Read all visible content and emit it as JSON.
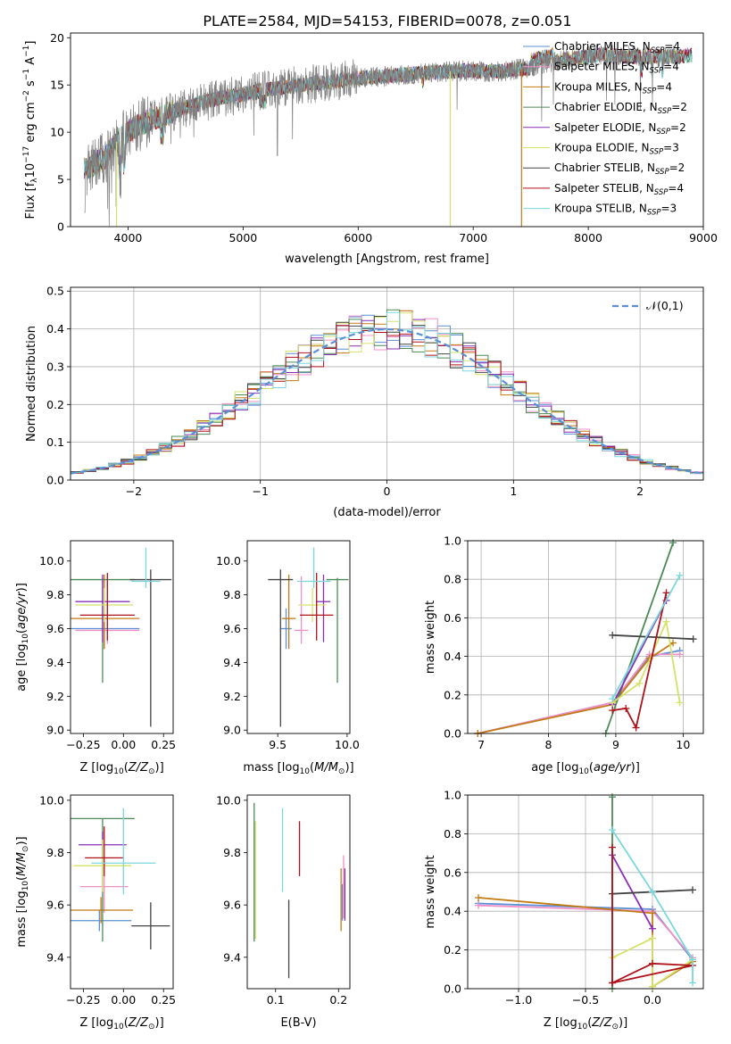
{
  "figure": {
    "title": "PLATE=2584, MJD=54153, FIBERID=0078, z=0.051"
  },
  "series_legend": [
    {
      "label": "Chabrier MILES, N",
      "sub": "SSP",
      "suffix": "=4",
      "color": "#5b8fd6"
    },
    {
      "label": "Salpeter MILES, N",
      "sub": "SSP",
      "suffix": "=4",
      "color": "#f090c8"
    },
    {
      "label": "Kroupa MILES, N",
      "sub": "SSP",
      "suffix": "=4",
      "color": "#c47a14"
    },
    {
      "label": "Chabrier ELODIE, N",
      "sub": "SSP",
      "suffix": "=2",
      "color": "#4c8a55"
    },
    {
      "label": "Salpeter ELODIE, N",
      "sub": "SSP",
      "suffix": "=2",
      "color": "#8a2fb5"
    },
    {
      "label": "Kroupa ELODIE, N",
      "sub": "SSP",
      "suffix": "=3",
      "color": "#d4e26a"
    },
    {
      "label": "Chabrier STELIB, N",
      "sub": "SSP",
      "suffix": "=2",
      "color": "#444444"
    },
    {
      "label": "Salpeter STELIB, N",
      "sub": "SSP",
      "suffix": "=4",
      "color": "#b0121b"
    },
    {
      "label": "Kroupa STELIB, N",
      "sub": "SSP",
      "suffix": "=3",
      "color": "#7ad7db"
    }
  ],
  "chart_data": [
    {
      "id": "spectrum",
      "type": "line",
      "xlabel": "wavelength [Angstrom, rest frame]",
      "ylabel": "Flux [f_λ10^-17 erg cm^-2 s^-1 A^-1]",
      "xlim": [
        3500,
        9000
      ],
      "ylim": [
        0,
        20.5
      ],
      "xticks": [
        4000,
        5000,
        6000,
        7000,
        8000,
        9000
      ],
      "yticks": [
        0,
        5,
        10,
        15,
        20
      ],
      "continuum": {
        "x": [
          3620,
          3700,
          3800,
          3900,
          4000,
          4200,
          4400,
          4600,
          4800,
          5000,
          5200,
          5500,
          5800,
          6000,
          6300,
          6600,
          6900,
          7200,
          7500,
          7800,
          8100,
          8400,
          8700,
          8900
        ],
        "y": [
          6.0,
          6.6,
          7.3,
          9.0,
          10.1,
          11.4,
          12.2,
          13.0,
          13.6,
          14.0,
          14.5,
          15.0,
          15.4,
          15.7,
          16.0,
          16.3,
          16.5,
          16.4,
          16.8,
          17.7,
          18.2,
          18.0,
          18.0,
          18.1
        ]
      },
      "dropouts": [
        {
          "series": "Kroupa ELODIE, N_SSP=3",
          "x": [
            3900,
            6800
          ],
          "color": "#d4e26a"
        },
        {
          "series": "Kroupa MILES, N_SSP=4",
          "x": [
            7420
          ],
          "color": "#c47a14"
        }
      ],
      "legend_location": "upper right"
    },
    {
      "id": "residuals",
      "type": "histogram",
      "xlabel": "(data-model)/error",
      "ylabel": "Normed distribution",
      "xlim": [
        -2.5,
        2.5
      ],
      "ylim": [
        0,
        0.51
      ],
      "xticks": [
        -2,
        -1,
        0,
        1,
        2
      ],
      "yticks": [
        0,
        0.1,
        0.2,
        0.3,
        0.4,
        0.5
      ],
      "bin_width": 0.1,
      "bin_start": -2.5,
      "reference": {
        "label": "𝒩(0,1)",
        "type": "normal",
        "mean": 0,
        "sigma": 1,
        "color": "#5b8fd6"
      },
      "legend_location": "upper right",
      "grid": true
    },
    {
      "id": "age-vs-Z",
      "type": "errorbar",
      "xlabel": "Z [log10(Z/Z⊙)]",
      "ylabel": "age  [log10(age/yr)]",
      "xlim": [
        -0.33,
        0.31
      ],
      "ylim": [
        8.98,
        10.12
      ],
      "xticks": [
        -0.25,
        0.0,
        0.25
      ],
      "yticks": [
        9.0,
        9.2,
        9.4,
        9.6,
        9.8,
        10.0
      ],
      "points": [
        {
          "x": -0.12,
          "xerr": 0.22,
          "y": 9.6,
          "yerr": [
            0.12,
            0.12
          ],
          "color": "#5b8fd6"
        },
        {
          "x": -0.1,
          "xerr": 0.2,
          "y": 9.59,
          "yerr": [
            0.08,
            0.32
          ],
          "color": "#f090c8"
        },
        {
          "x": -0.12,
          "xerr": 0.22,
          "y": 9.66,
          "yerr": [
            0.18,
            0.26
          ],
          "color": "#c47a14"
        },
        {
          "x": -0.13,
          "xerr": 0.2,
          "y": 9.89,
          "yerr": [
            0.61,
            0.01
          ],
          "color": "#4c8a55"
        },
        {
          "x": -0.13,
          "xerr": 0.17,
          "y": 9.76,
          "yerr": [
            0.24,
            0.16
          ],
          "color": "#8a2fb5"
        },
        {
          "x": -0.12,
          "xerr": 0.18,
          "y": 9.74,
          "yerr": [
            0.1,
            0.1
          ],
          "color": "#d4e26a"
        },
        {
          "x": 0.17,
          "xerr": 0.13,
          "y": 9.89,
          "yerr": [
            0.87,
            0.06
          ],
          "color": "#444444"
        },
        {
          "x": -0.1,
          "xerr": 0.17,
          "y": 9.68,
          "yerr": [
            0.15,
            0.25
          ],
          "color": "#b0121b"
        },
        {
          "x": 0.14,
          "xerr": 0.09,
          "y": 9.88,
          "yerr": [
            0.04,
            0.2
          ],
          "color": "#7ad7db"
        }
      ]
    },
    {
      "id": "age-vs-mass",
      "type": "errorbar",
      "xlabel": "mass [log10(M/M⊙)]",
      "ylabel": "",
      "xlim": [
        9.28,
        10.02
      ],
      "ylim": [
        8.98,
        10.12
      ],
      "xticks": [
        9.5,
        10.0
      ],
      "yticks": [
        9.0,
        9.2,
        9.4,
        9.6,
        9.8,
        10.0
      ],
      "points": [
        {
          "x": 9.56,
          "xerr": 0.04,
          "y": 9.6,
          "yerr": [
            0.12,
            0.12
          ],
          "color": "#5b8fd6"
        },
        {
          "x": 9.67,
          "xerr": 0.05,
          "y": 9.59,
          "yerr": [
            0.08,
            0.32
          ],
          "color": "#f090c8"
        },
        {
          "x": 9.58,
          "xerr": 0.05,
          "y": 9.66,
          "yerr": [
            0.18,
            0.26
          ],
          "color": "#c47a14"
        },
        {
          "x": 9.93,
          "xerr": 0.08,
          "y": 9.89,
          "yerr": [
            0.61,
            0.01
          ],
          "color": "#4c8a55"
        },
        {
          "x": 9.83,
          "xerr": 0.05,
          "y": 9.76,
          "yerr": [
            0.24,
            0.16
          ],
          "color": "#8a2fb5"
        },
        {
          "x": 9.75,
          "xerr": 0.1,
          "y": 9.74,
          "yerr": [
            0.1,
            0.1
          ],
          "color": "#d4e26a"
        },
        {
          "x": 9.52,
          "xerr": 0.09,
          "y": 9.89,
          "yerr": [
            0.87,
            0.06
          ],
          "color": "#444444"
        },
        {
          "x": 9.78,
          "xerr": 0.12,
          "y": 9.68,
          "yerr": [
            0.15,
            0.25
          ],
          "color": "#b0121b"
        },
        {
          "x": 9.76,
          "xerr": 0.12,
          "y": 9.88,
          "yerr": [
            0.04,
            0.2
          ],
          "color": "#7ad7db"
        }
      ]
    },
    {
      "id": "weight-vs-age",
      "type": "line",
      "xlabel": "age  [log10(age/yr)]",
      "ylabel": "mass weight",
      "xlim": [
        6.8,
        10.3
      ],
      "ylim": [
        0,
        1.0
      ],
      "xticks": [
        7,
        8,
        9,
        10
      ],
      "yticks": [
        0.0,
        0.2,
        0.4,
        0.6,
        0.8,
        1.0
      ],
      "grid": true,
      "series": [
        {
          "color": "#5b8fd6",
          "x": [
            6.95,
            8.95,
            9.5,
            9.95
          ],
          "y": [
            0.0,
            0.16,
            0.4,
            0.43
          ]
        },
        {
          "color": "#f090c8",
          "x": [
            6.95,
            8.95,
            9.5,
            9.95
          ],
          "y": [
            0.0,
            0.16,
            0.41,
            0.41
          ]
        },
        {
          "color": "#c47a14",
          "x": [
            6.95,
            8.95,
            9.5,
            9.85
          ],
          "y": [
            0.0,
            0.15,
            0.39,
            0.47
          ]
        },
        {
          "color": "#4c8a55",
          "x": [
            8.85,
            9.85
          ],
          "y": [
            0.0,
            0.99
          ]
        },
        {
          "color": "#8a2fb5",
          "x": [
            8.95,
            9.75
          ],
          "y": [
            0.15,
            0.69
          ]
        },
        {
          "color": "#d4e26a",
          "x": [
            8.95,
            9.35,
            9.75,
            9.95
          ],
          "y": [
            0.16,
            0.26,
            0.58,
            0.16
          ]
        },
        {
          "color": "#444444",
          "x": [
            8.95,
            10.15
          ],
          "y": [
            0.51,
            0.49
          ]
        },
        {
          "color": "#b0121b",
          "x": [
            8.95,
            9.15,
            9.3,
            9.75
          ],
          "y": [
            0.12,
            0.13,
            0.03,
            0.73
          ]
        },
        {
          "color": "#7ad7db",
          "x": [
            8.95,
            9.95
          ],
          "y": [
            0.18,
            0.82
          ]
        }
      ]
    },
    {
      "id": "mass-vs-Z",
      "type": "errorbar",
      "xlabel": "Z [log10(Z/Z⊙)]",
      "ylabel": "mass [log10(M/M⊙)]",
      "xlim": [
        -0.33,
        0.31
      ],
      "ylim": [
        9.28,
        10.02
      ],
      "xticks": [
        -0.25,
        0.0,
        0.25
      ],
      "yticks": [
        9.4,
        9.6,
        9.8,
        10.0
      ],
      "points": [
        {
          "x": -0.15,
          "xerr": 0.2,
          "y": 9.54,
          "yerr": [
            0.04,
            0.04
          ],
          "color": "#5b8fd6"
        },
        {
          "x": -0.12,
          "xerr": 0.15,
          "y": 9.67,
          "yerr": [
            0.1,
            0.1
          ],
          "color": "#f090c8"
        },
        {
          "x": -0.14,
          "xerr": 0.2,
          "y": 9.58,
          "yerr": [
            0.05,
            0.05
          ],
          "color": "#c47a14"
        },
        {
          "x": -0.13,
          "xerr": 0.2,
          "y": 9.93,
          "yerr": [
            0.47,
            0.0
          ],
          "color": "#4c8a55"
        },
        {
          "x": -0.13,
          "xerr": 0.15,
          "y": 9.83,
          "yerr": [
            0.05,
            0.05
          ],
          "color": "#8a2fb5"
        },
        {
          "x": -0.13,
          "xerr": 0.18,
          "y": 9.75,
          "yerr": [
            0.1,
            0.1
          ],
          "color": "#d4e26a"
        },
        {
          "x": 0.17,
          "xerr": 0.12,
          "y": 9.52,
          "yerr": [
            0.09,
            0.09
          ],
          "color": "#444444"
        },
        {
          "x": -0.12,
          "xerr": 0.12,
          "y": 9.78,
          "yerr": [
            0.07,
            0.12
          ],
          "color": "#b0121b"
        },
        {
          "x": 0.0,
          "xerr": 0.2,
          "y": 9.76,
          "yerr": [
            0.12,
            0.21
          ],
          "color": "#7ad7db"
        }
      ]
    },
    {
      "id": "mass-vs-ebv",
      "type": "errorbar",
      "xlabel": "E(B-V)",
      "ylabel": "",
      "xlim": [
        0.055,
        0.218
      ],
      "ylim": [
        9.28,
        10.02
      ],
      "xticks": [
        0.1,
        0.2
      ],
      "yticks": [
        9.4,
        9.6,
        9.8,
        10.0
      ],
      "points": [
        {
          "x": 0.206,
          "xerr": 0,
          "y": 9.61,
          "yerr": [
            0.07,
            0.07
          ],
          "color": "#5b8fd6"
        },
        {
          "x": 0.208,
          "xerr": 0,
          "y": 9.67,
          "yerr": [
            0.12,
            0.12
          ],
          "color": "#f090c8"
        },
        {
          "x": 0.204,
          "xerr": 0,
          "y": 9.62,
          "yerr": [
            0.12,
            0.12
          ],
          "color": "#c47a14"
        },
        {
          "x": 0.066,
          "xerr": 0,
          "y": 9.93,
          "yerr": [
            0.47,
            0.06
          ],
          "color": "#4c8a55"
        },
        {
          "x": 0.21,
          "xerr": 0,
          "y": 9.66,
          "yerr": [
            0.12,
            0.08
          ],
          "color": "#8a2fb5"
        },
        {
          "x": 0.068,
          "xerr": 0,
          "y": 9.75,
          "yerr": [
            0.28,
            0.17
          ],
          "color": "#d4e26a"
        },
        {
          "x": 0.121,
          "xerr": 0,
          "y": 9.47,
          "yerr": [
            0.15,
            0.15
          ],
          "color": "#444444"
        },
        {
          "x": 0.138,
          "xerr": 0,
          "y": 9.81,
          "yerr": [
            0.1,
            0.11
          ],
          "color": "#b0121b"
        },
        {
          "x": 0.111,
          "xerr": 0,
          "y": 9.81,
          "yerr": [
            0.16,
            0.16
          ],
          "color": "#7ad7db"
        }
      ]
    },
    {
      "id": "weight-vs-Z",
      "type": "line",
      "xlabel": "Z [log10(Z/Z⊙)]",
      "ylabel": "mass weight",
      "xlim": [
        -1.38,
        0.38
      ],
      "ylim": [
        0,
        1.0
      ],
      "xticks": [
        -1.0,
        -0.5,
        0.0
      ],
      "yticks": [
        0.0,
        0.2,
        0.4,
        0.6,
        0.8,
        1.0
      ],
      "grid": true,
      "series": [
        {
          "color": "#5b8fd6",
          "x": [
            -1.3,
            0.0,
            0.3
          ],
          "y": [
            0.44,
            0.41,
            0.15
          ]
        },
        {
          "color": "#f090c8",
          "x": [
            -1.3,
            0.0,
            0.3
          ],
          "y": [
            0.43,
            0.4,
            0.16
          ]
        },
        {
          "color": "#c47a14",
          "x": [
            -1.3,
            0.0,
            0.0,
            0.3
          ],
          "y": [
            0.47,
            0.39,
            0.01,
            0.14
          ]
        },
        {
          "color": "#4c8a55",
          "x": [
            -0.3,
            -0.3
          ],
          "y": [
            0.0,
            0.99
          ]
        },
        {
          "color": "#8a2fb5",
          "x": [
            -0.3,
            0.0
          ],
          "y": [
            0.69,
            0.31
          ]
        },
        {
          "color": "#d4e26a",
          "x": [
            -0.3,
            0.0,
            0.0,
            0.3
          ],
          "y": [
            0.16,
            0.26,
            0.01,
            0.15
          ]
        },
        {
          "color": "#444444",
          "x": [
            -0.3,
            0.3
          ],
          "y": [
            0.49,
            0.51
          ]
        },
        {
          "color": "#b0121b",
          "x": [
            -0.3,
            -0.3,
            0.0,
            0.3,
            -0.3
          ],
          "y": [
            0.73,
            0.03,
            0.13,
            0.12,
            0.03
          ]
        },
        {
          "color": "#7ad7db",
          "x": [
            -0.3,
            0.0,
            0.3,
            0.3
          ],
          "y": [
            0.82,
            0.5,
            0.15,
            0.03
          ]
        }
      ]
    }
  ]
}
